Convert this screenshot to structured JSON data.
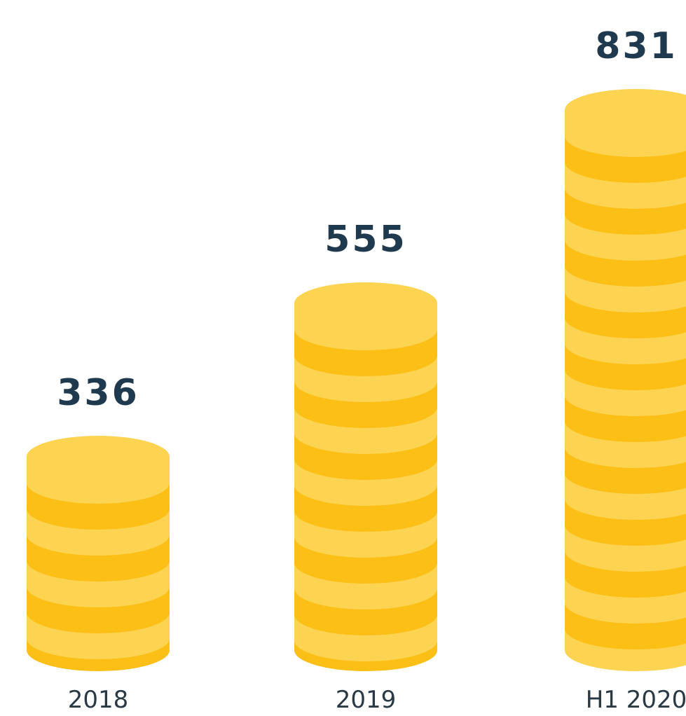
{
  "chart_data": {
    "type": "coin-stack",
    "categories": [
      "2018",
      "2019",
      "H1 2020"
    ],
    "values": [
      336,
      555,
      831
    ],
    "color": "#fbbf16"
  }
}
